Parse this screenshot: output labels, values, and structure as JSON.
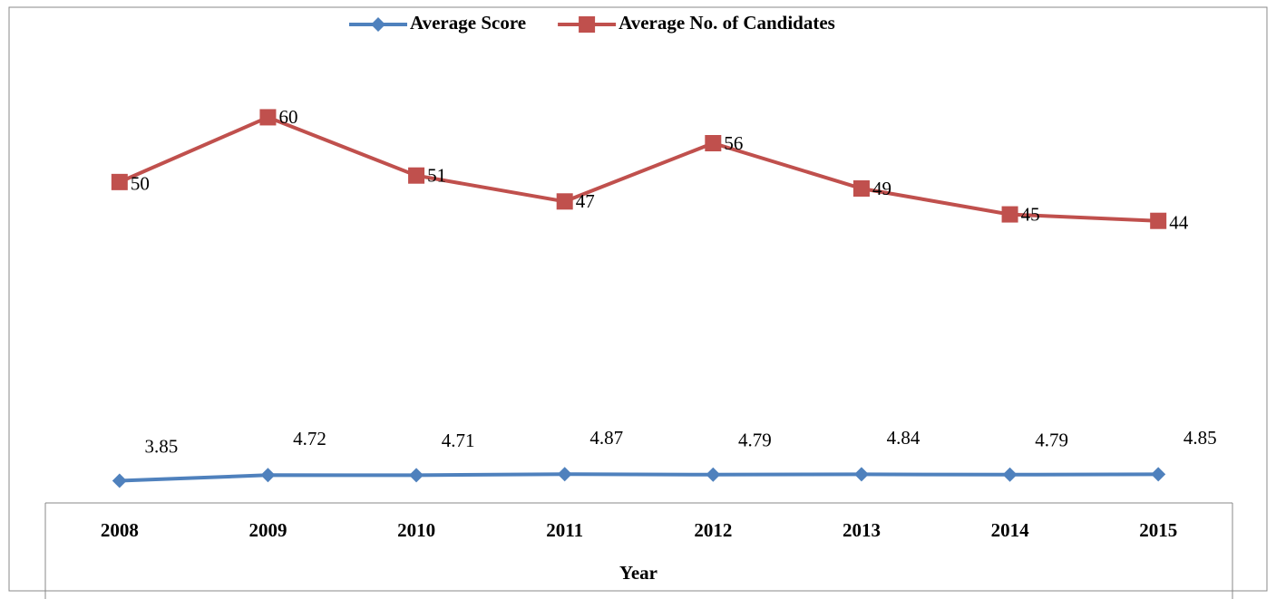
{
  "chart_data": {
    "type": "line",
    "categories": [
      "2008",
      "2009",
      "2010",
      "2011",
      "2012",
      "2013",
      "2014",
      "2015"
    ],
    "x_label": "Year",
    "series": [
      {
        "name": "Average Score",
        "color": "#4f81bd",
        "marker": "diamond",
        "values": [
          3.85,
          4.72,
          4.71,
          4.87,
          4.79,
          4.84,
          4.79,
          4.85
        ]
      },
      {
        "name": "Average No. of Candidates",
        "color": "#c0504d",
        "marker": "square",
        "values": [
          50,
          60,
          51,
          47,
          56,
          49,
          45,
          44
        ]
      }
    ],
    "ylim": [
      0,
      70
    ],
    "legend": "top",
    "grid": false
  }
}
